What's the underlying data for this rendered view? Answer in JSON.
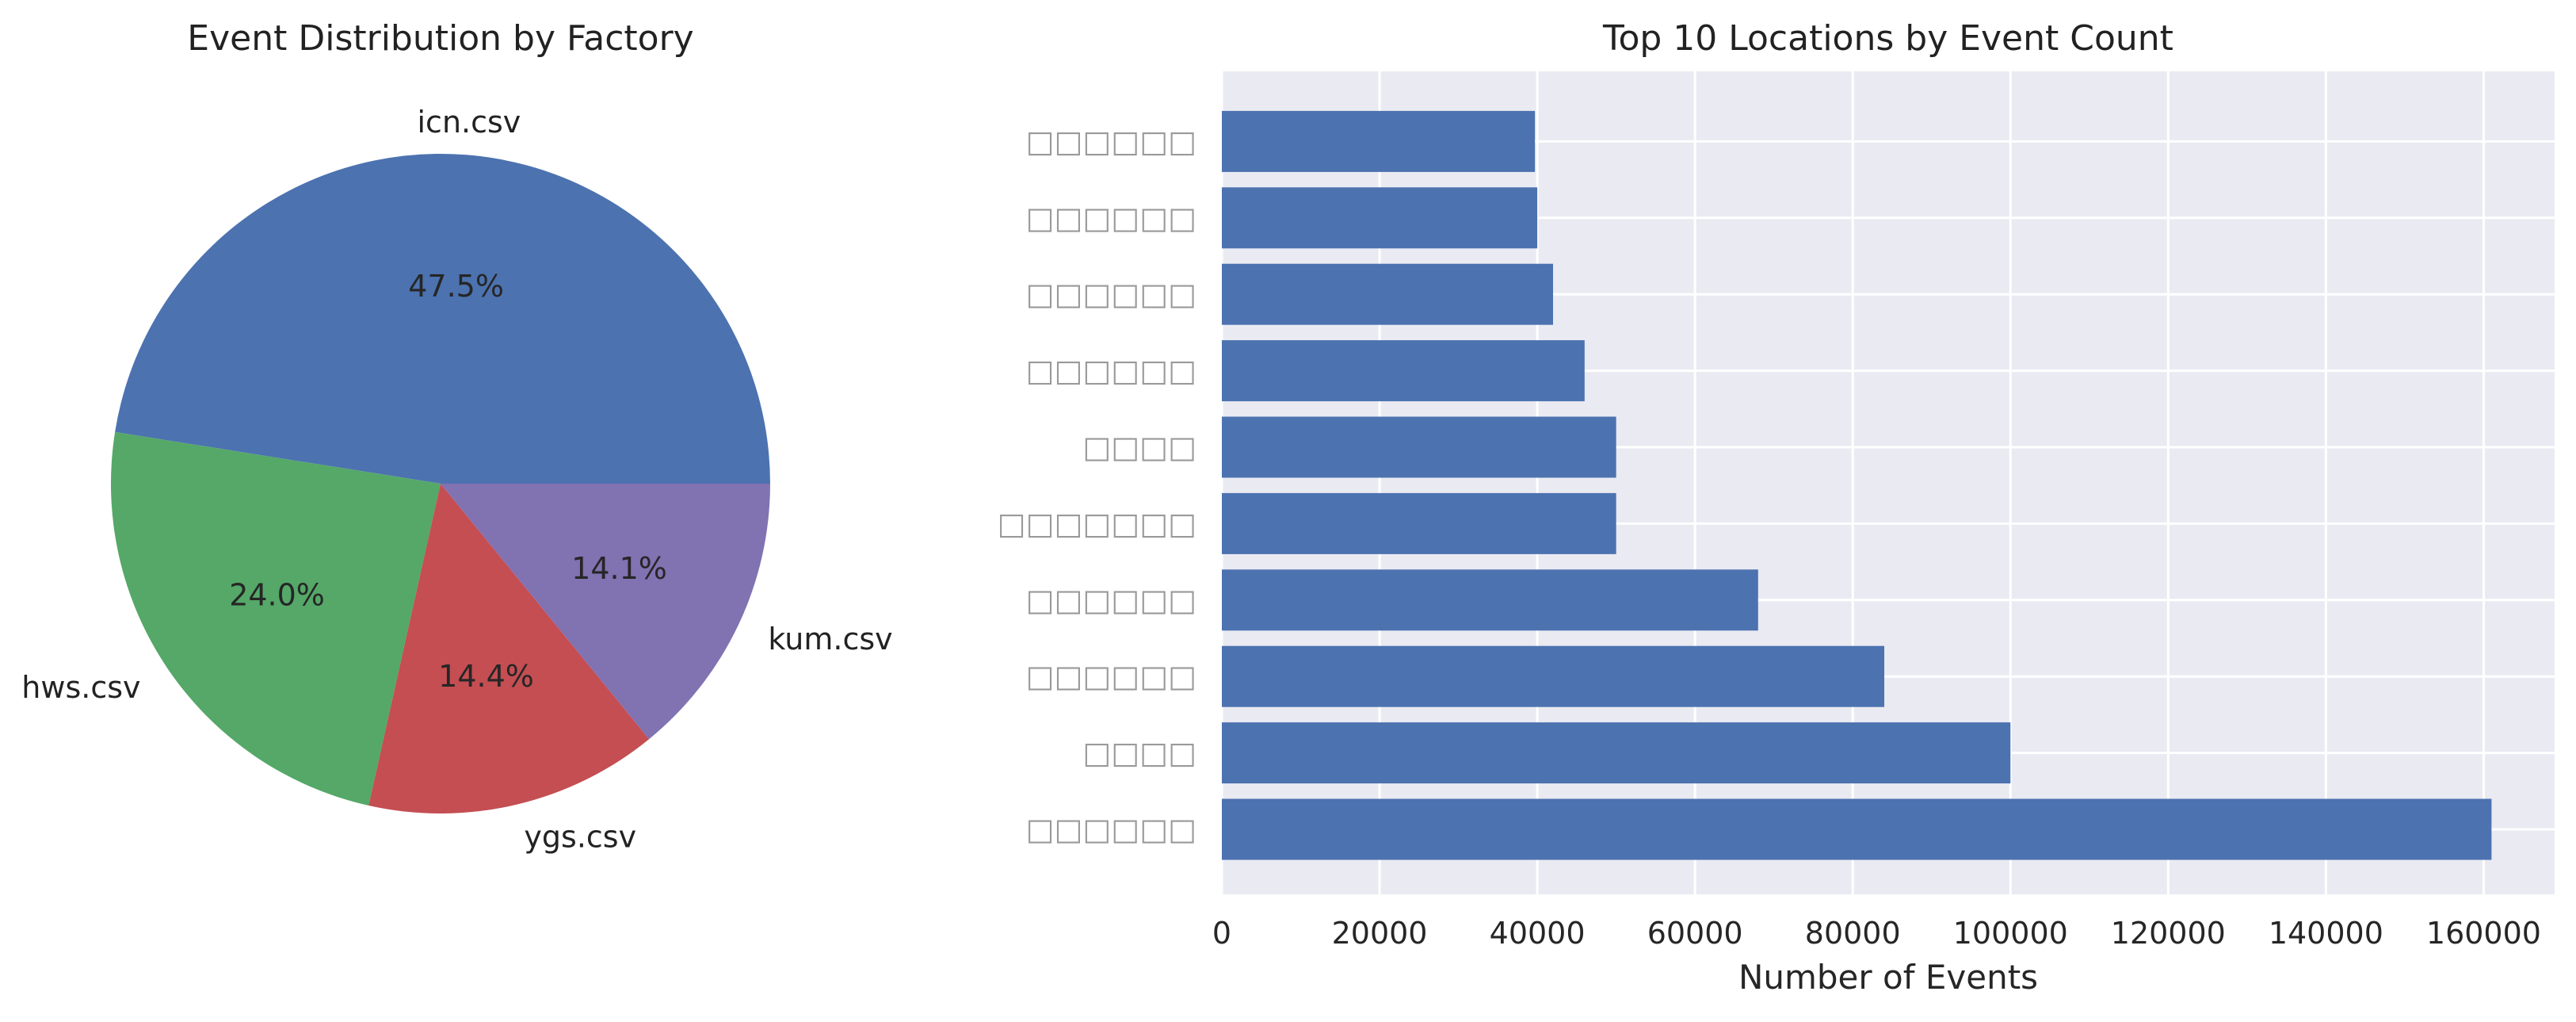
{
  "chart_data": [
    {
      "type": "pie",
      "title": "Event Distribution by Factory",
      "labels": [
        "icn.csv",
        "hws.csv",
        "ygs.csv",
        "kum.csv"
      ],
      "values": [
        47.5,
        24.0,
        14.4,
        14.1
      ],
      "pct_labels": [
        "47.5%",
        "24.0%",
        "14.4%",
        "14.1%"
      ],
      "colors": [
        "#4c72b0",
        "#55a868",
        "#c44e52",
        "#8172b2"
      ],
      "start_angle": 0,
      "direction": "counterclockwise"
    },
    {
      "type": "bar",
      "orientation": "horizontal",
      "title": "Top 10 Locations by Event Count",
      "xlabel": "Number of Events",
      "ylabel": "",
      "categories": [
        "□□□□□□",
        "□□□□",
        "□□□□□□",
        "□□□□□□",
        "□□□□□□□",
        "□□□□",
        "□□□□□□",
        "□□□□□□",
        "□□□□□□",
        "□□□□□□"
      ],
      "values": [
        161000,
        100000,
        84000,
        68000,
        50000,
        50000,
        46000,
        42000,
        40000,
        39700
      ],
      "xlim": [
        0,
        169000
      ],
      "xticks": [
        0,
        20000,
        40000,
        60000,
        80000,
        100000,
        120000,
        140000,
        160000
      ],
      "xtick_labels": [
        "0",
        "20000",
        "40000",
        "60000",
        "80000",
        "100000",
        "120000",
        "140000",
        "160000"
      ],
      "grid": true,
      "color": "#4c72b0",
      "background": "#eaeaf2"
    }
  ]
}
